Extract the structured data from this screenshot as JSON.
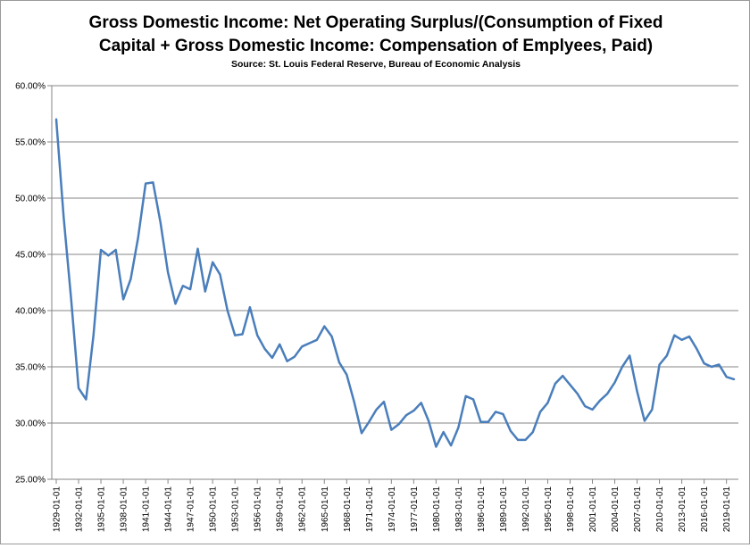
{
  "chart_data": {
    "type": "line",
    "title_lines": [
      "Gross Domestic Income: Net Operating Surplus/(Consumption of Fixed",
      "Capital + Gross Domestic Income: Compensation of Emplyees, Paid)"
    ],
    "subtitle": "Source: St. Louis Federal Reserve, Bureau of Economic Analysis",
    "xlabel": "",
    "ylabel": "",
    "ylim": [
      0.25,
      0.6
    ],
    "yticks": [
      0.25,
      0.3,
      0.35,
      0.4,
      0.45,
      0.5,
      0.55,
      0.6
    ],
    "ytick_labels": [
      "25.00%",
      "30.00%",
      "35.00%",
      "40.00%",
      "45.00%",
      "50.00%",
      "55.00%",
      "60.00%"
    ],
    "xtick_labels": [
      "1929-01-01",
      "1932-01-01",
      "1935-01-01",
      "1938-01-01",
      "1941-01-01",
      "1944-01-01",
      "1947-01-01",
      "1950-01-01",
      "1953-01-01",
      "1956-01-01",
      "1959-01-01",
      "1962-01-01",
      "1965-01-01",
      "1968-01-01",
      "1971-01-01",
      "1974-01-01",
      "1977-01-01",
      "1980-01-01",
      "1983-01-01",
      "1986-01-01",
      "1989-01-01",
      "1992-01-01",
      "1995-01-01",
      "1998-01-01",
      "2001-01-01",
      "2004-01-01",
      "2007-01-01",
      "2010-01-01",
      "2013-01-01",
      "2016-01-01",
      "2019-01-01"
    ],
    "grid": true,
    "legend": "none",
    "color": "#4a7ebb",
    "x": [
      1929,
      1930,
      1931,
      1932,
      1933,
      1934,
      1935,
      1936,
      1937,
      1938,
      1939,
      1940,
      1941,
      1942,
      1943,
      1944,
      1945,
      1946,
      1947,
      1948,
      1949,
      1950,
      1951,
      1952,
      1953,
      1954,
      1955,
      1956,
      1957,
      1958,
      1959,
      1960,
      1961,
      1962,
      1963,
      1964,
      1965,
      1966,
      1967,
      1968,
      1969,
      1970,
      1971,
      1972,
      1973,
      1974,
      1975,
      1976,
      1977,
      1978,
      1979,
      1980,
      1981,
      1982,
      1983,
      1984,
      1985,
      1986,
      1987,
      1988,
      1989,
      1990,
      1991,
      1992,
      1993,
      1994,
      1995,
      1996,
      1997,
      1998,
      1999,
      2000,
      2001,
      2002,
      2003,
      2004,
      2005,
      2006,
      2007,
      2008,
      2009,
      2010,
      2011,
      2012,
      2013,
      2014,
      2015,
      2016,
      2017,
      2018,
      2019,
      2020
    ],
    "values": [
      0.57,
      0.483,
      0.41,
      0.331,
      0.321,
      0.378,
      0.454,
      0.449,
      0.454,
      0.41,
      0.428,
      0.465,
      0.513,
      0.514,
      0.478,
      0.434,
      0.406,
      0.422,
      0.419,
      0.455,
      0.417,
      0.443,
      0.432,
      0.4,
      0.378,
      0.379,
      0.403,
      0.378,
      0.366,
      0.358,
      0.37,
      0.355,
      0.359,
      0.368,
      0.371,
      0.374,
      0.386,
      0.377,
      0.354,
      0.343,
      0.319,
      0.291,
      0.301,
      0.312,
      0.319,
      0.294,
      0.299,
      0.307,
      0.311,
      0.318,
      0.302,
      0.279,
      0.292,
      0.28,
      0.296,
      0.324,
      0.321,
      0.301,
      0.301,
      0.31,
      0.308,
      0.293,
      0.285,
      0.285,
      0.292,
      0.31,
      0.318,
      0.335,
      0.342,
      0.334,
      0.326,
      0.315,
      0.312,
      0.32,
      0.326,
      0.336,
      0.35,
      0.36,
      0.328,
      0.302,
      0.312,
      0.352,
      0.36,
      0.378,
      0.374,
      0.377,
      0.366,
      0.353,
      0.35,
      0.352,
      0.341,
      0.339
    ]
  }
}
